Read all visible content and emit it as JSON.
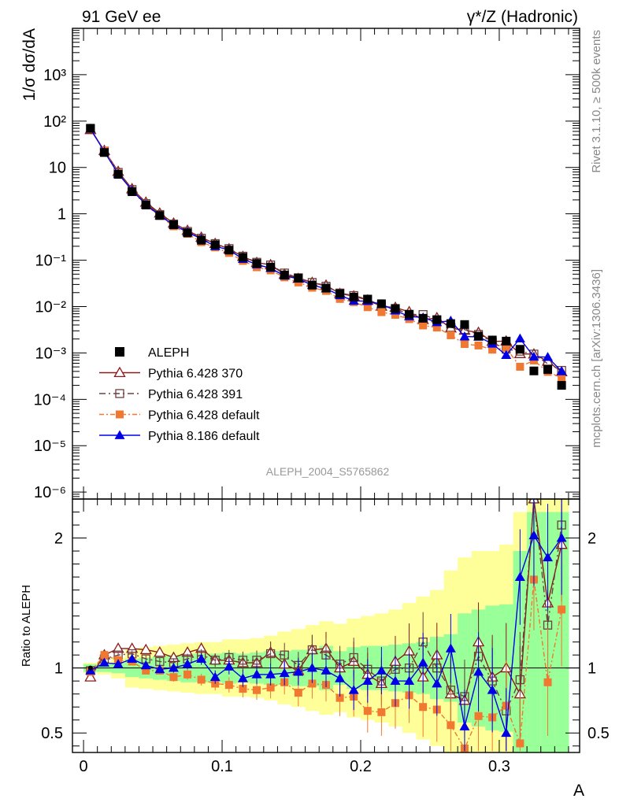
{
  "header": {
    "left": "91 GeV ee",
    "right": "γ*/Z (Hadronic)",
    "side_top": "Rivet 3.1.10, ≥ 500k events",
    "side_bottom": "mcplots.cern.ch [arXiv:1306.3436]",
    "analysis": "ALEPH_2004_S5765862"
  },
  "chart_data": {
    "type": "line",
    "xlabel": "A",
    "ylabel_main": "1/σ  dσ/dA",
    "ylabel_ratio": "Ratio to ALEPH",
    "xlim": [
      -0.008,
      0.358
    ],
    "ylim_main_log10": [
      -6.15,
      4.0
    ],
    "ylim_ratio": [
      0.35,
      2.3
    ],
    "x_ticks": [
      0,
      0.1,
      0.2,
      0.3
    ],
    "x_tick_labels": [
      "0",
      "0.1",
      "0.2",
      "0.3"
    ],
    "main_y_ticks": [
      -6,
      -5,
      -4,
      -3,
      -2,
      -1,
      0,
      1,
      2,
      3
    ],
    "main_y_tick_labels": [
      "10⁻⁶",
      "10⁻⁵",
      "10⁻⁴",
      "10⁻³",
      "10⁻²",
      "10⁻¹",
      "1",
      "10",
      "10²",
      "10³"
    ],
    "ratio_y_ticks": [
      0.5,
      1,
      2
    ],
    "ratio_y_tick_labels": [
      "0.5",
      "1",
      "2"
    ],
    "x": [
      0.005,
      0.015,
      0.025,
      0.035,
      0.045,
      0.055,
      0.065,
      0.075,
      0.085,
      0.095,
      0.105,
      0.115,
      0.125,
      0.135,
      0.145,
      0.155,
      0.165,
      0.175,
      0.185,
      0.195,
      0.205,
      0.215,
      0.225,
      0.235,
      0.245,
      0.255,
      0.265,
      0.275,
      0.285,
      0.295,
      0.305,
      0.315,
      0.325,
      0.335,
      0.345
    ],
    "data": {
      "name": "ALEPH",
      "color": "#000000",
      "values": [
        70,
        21,
        7.1,
        3.0,
        1.55,
        0.92,
        0.58,
        0.39,
        0.27,
        0.215,
        0.165,
        0.115,
        0.085,
        0.071,
        0.048,
        0.041,
        0.029,
        0.025,
        0.019,
        0.016,
        0.0145,
        0.0115,
        0.0091,
        0.0068,
        0.0056,
        0.0052,
        0.0043,
        0.0041,
        0.0023,
        0.0019,
        0.0018,
        0.0012,
        0.00041,
        0.00044,
        0.0002
      ]
    },
    "band": {
      "green": [
        0.03,
        0.03,
        0.04,
        0.07,
        0.08,
        0.09,
        0.1,
        0.11,
        0.11,
        0.11,
        0.12,
        0.11,
        0.12,
        0.13,
        0.13,
        0.14,
        0.14,
        0.17,
        0.13,
        0.16,
        0.17,
        0.17,
        0.18,
        0.19,
        0.2,
        0.24,
        0.26,
        0.42,
        0.45,
        0.48,
        0.49,
        0.9,
        1.2,
        1.2,
        1.2
      ],
      "yellow": [
        0.04,
        0.05,
        0.08,
        0.15,
        0.16,
        0.17,
        0.18,
        0.19,
        0.2,
        0.2,
        0.22,
        0.22,
        0.23,
        0.25,
        0.28,
        0.3,
        0.33,
        0.36,
        0.34,
        0.38,
        0.4,
        0.42,
        0.45,
        0.5,
        0.55,
        0.6,
        0.75,
        0.85,
        0.9,
        0.9,
        0.95,
        1.2,
        1.3,
        1.3,
        1.3
      ]
    },
    "series": [
      {
        "name": "Pythia 6.428 370",
        "color": "#8b1a1a",
        "marker": "triangle-open",
        "dash": "",
        "ratio": [
          0.93,
          1.1,
          1.15,
          1.15,
          1.14,
          1.12,
          1.08,
          1.12,
          1.15,
          1.06,
          1.06,
          1.04,
          1.04,
          1.12,
          1.03,
          0.98,
          1.14,
          1.15,
          1.0,
          1.05,
          0.95,
          0.88,
          1.05,
          1.13,
          0.93,
          1.1,
          0.8,
          0.75,
          1.2,
          0.93,
          1.0,
          0.8,
          2.3,
          1.5,
          1.95
        ]
      },
      {
        "name": "Pythia 6.428 391",
        "color": "#6b4040",
        "marker": "square-open",
        "dash": "8,4,2,4",
        "ratio": [
          0.98,
          1.07,
          1.1,
          1.11,
          1.07,
          1.05,
          1.04,
          1.07,
          1.1,
          1.06,
          1.08,
          1.06,
          1.06,
          1.11,
          1.1,
          1.02,
          1.14,
          1.1,
          1.03,
          1.08,
          0.99,
          0.9,
          0.99,
          1.0,
          1.2,
          1.0,
          0.83,
          0.78,
          1.09,
          0.9,
          0.67,
          0.91,
          2.3,
          1.33,
          2.1
        ]
      },
      {
        "name": "Pythia 6.428 default",
        "color": "#f07830",
        "marker": "square-filled",
        "dash": "6,3,2,3",
        "ratio": [
          0.97,
          1.1,
          1.06,
          1.05,
          0.98,
          0.98,
          0.93,
          0.95,
          0.91,
          0.88,
          0.87,
          0.84,
          0.83,
          0.85,
          0.89,
          0.81,
          0.88,
          0.87,
          0.77,
          0.78,
          0.67,
          0.66,
          0.73,
          0.79,
          0.7,
          0.68,
          0.56,
          0.38,
          0.63,
          0.62,
          0.71,
          0.42,
          1.68,
          0.89,
          1.45
        ]
      },
      {
        "name": "Pythia 8.186 default",
        "color": "#0000e6",
        "marker": "triangle-filled",
        "dash": "",
        "ratio": [
          0.98,
          1.04,
          1.03,
          1.07,
          1.02,
          0.99,
          1.0,
          1.03,
          1.07,
          0.93,
          1.01,
          0.92,
          0.95,
          0.95,
          0.96,
          0.97,
          1.0,
          0.98,
          0.92,
          0.83,
          0.9,
          0.98,
          0.9,
          0.9,
          1.04,
          0.88,
          1.15,
          0.55,
          0.97,
          0.83,
          0.5,
          1.7,
          2.02,
          1.85,
          2.0
        ]
      }
    ]
  }
}
